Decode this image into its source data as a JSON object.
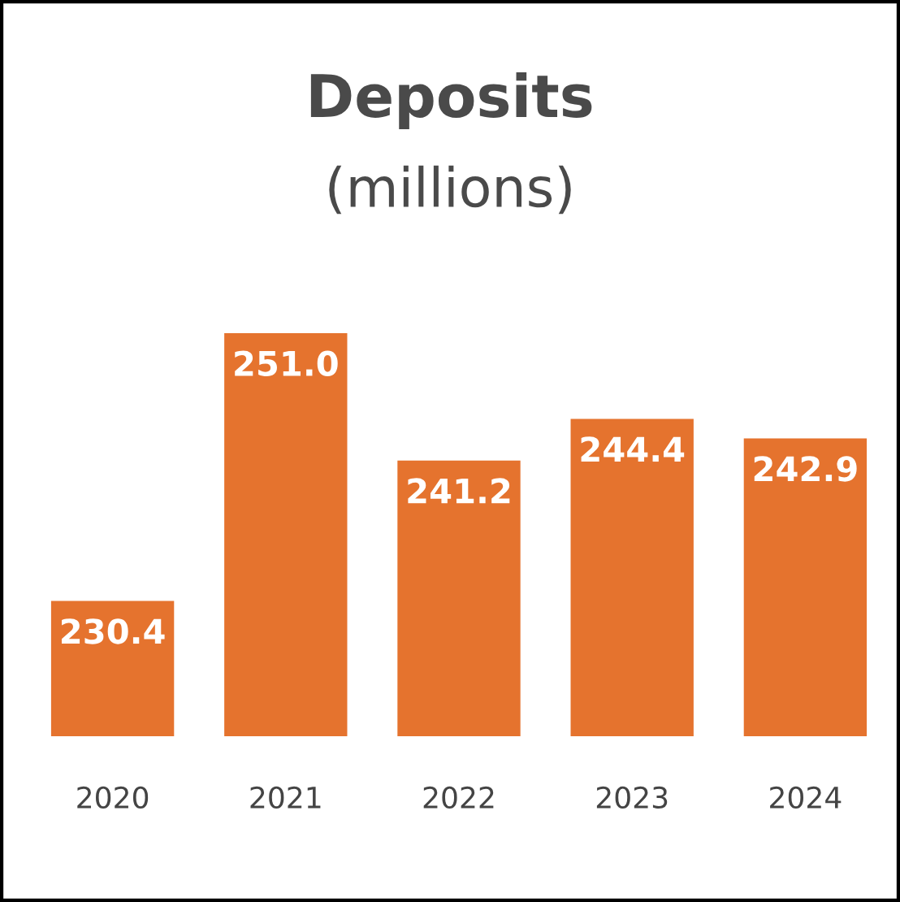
{
  "chart_data": {
    "type": "bar",
    "title": "Deposits",
    "subtitle": "(millions)",
    "categories": [
      "2020",
      "2021",
      "2022",
      "2023",
      "2024"
    ],
    "values": [
      230.4,
      251.0,
      241.2,
      244.4,
      242.9
    ],
    "value_labels": [
      "230.4",
      "251.0",
      "241.2",
      "244.4",
      "242.9"
    ],
    "color": "#e5732e",
    "ylim": [
      220,
      251.0
    ],
    "tick_labels": "x",
    "grid": false
  }
}
